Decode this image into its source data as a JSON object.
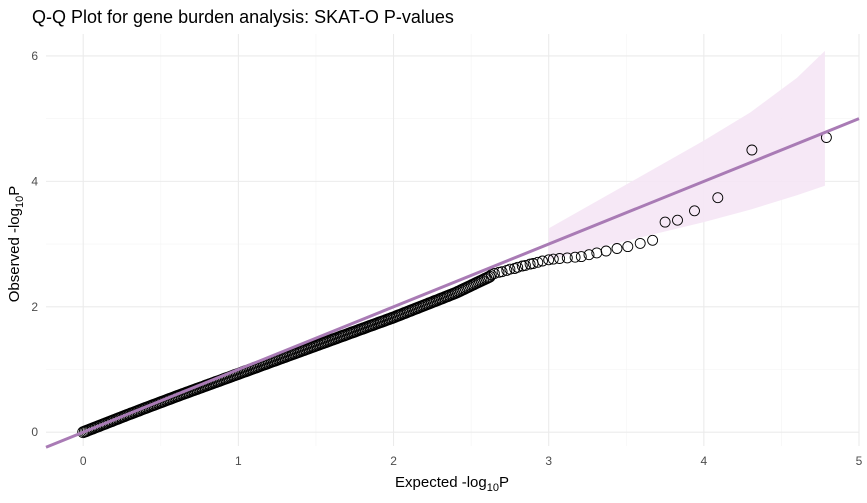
{
  "chart_data": {
    "type": "scatter",
    "title": "Q-Q Plot for gene burden analysis: SKAT-O P-values",
    "xlabel": {
      "main": "Expected -log",
      "sub": "10",
      "suffix": "P"
    },
    "ylabel": {
      "main": "Observed -log",
      "sub": "10",
      "suffix": "P"
    },
    "xlim": [
      -0.24,
      5.0
    ],
    "ylim": [
      -0.22,
      6.35
    ],
    "x_ticks": [
      0,
      1,
      2,
      3,
      4,
      5
    ],
    "y_ticks": [
      0,
      2,
      4,
      6
    ],
    "grid": true,
    "legend": "none",
    "reference_line": {
      "slope": 1,
      "intercept": 0,
      "color": "#a97bb5"
    },
    "confidence_band": {
      "color": "#f5e6f5",
      "points": [
        {
          "x": 3.0,
          "lower": 2.75,
          "upper": 3.25
        },
        {
          "x": 3.5,
          "lower": 3.05,
          "upper": 3.95
        },
        {
          "x": 4.0,
          "lower": 3.35,
          "upper": 4.65
        },
        {
          "x": 4.3,
          "lower": 3.55,
          "upper": 5.1
        },
        {
          "x": 4.6,
          "lower": 3.78,
          "upper": 5.65
        },
        {
          "x": 4.78,
          "lower": 3.93,
          "upper": 6.08
        }
      ]
    },
    "point_style": {
      "stroke": "#000000",
      "fill": "none"
    },
    "dense_trend": {
      "x": [
        0.0,
        0.3,
        0.6,
        1.0,
        1.5,
        2.0,
        2.4,
        2.62
      ],
      "y": [
        0.0,
        0.29,
        0.57,
        0.93,
        1.38,
        1.83,
        2.22,
        2.48
      ]
    },
    "points": {
      "x": [
        2.63,
        2.65,
        2.68,
        2.7,
        2.73,
        2.75,
        2.78,
        2.8,
        2.83,
        2.85,
        2.88,
        2.9,
        2.93,
        2.96,
        3.0,
        3.03,
        3.07,
        3.12,
        3.17,
        3.21,
        3.26,
        3.31,
        3.37,
        3.44,
        3.51,
        3.59,
        3.67,
        3.75,
        3.83,
        3.94,
        4.09,
        4.31,
        4.79
      ],
      "y": [
        2.51,
        2.53,
        2.55,
        2.56,
        2.58,
        2.6,
        2.61,
        2.63,
        2.65,
        2.66,
        2.68,
        2.69,
        2.71,
        2.73,
        2.75,
        2.76,
        2.77,
        2.78,
        2.79,
        2.8,
        2.83,
        2.86,
        2.89,
        2.93,
        2.96,
        3.01,
        3.06,
        3.35,
        3.38,
        3.53,
        3.74,
        4.5,
        4.7
      ]
    }
  }
}
